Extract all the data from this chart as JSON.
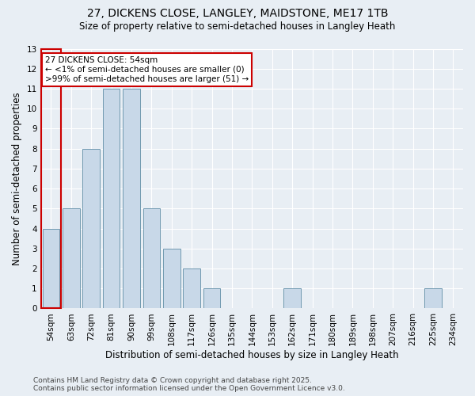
{
  "title": "27, DICKENS CLOSE, LANGLEY, MAIDSTONE, ME17 1TB",
  "subtitle": "Size of property relative to semi-detached houses in Langley Heath",
  "xlabel": "Distribution of semi-detached houses by size in Langley Heath",
  "ylabel": "Number of semi-detached properties",
  "categories": [
    "54sqm",
    "63sqm",
    "72sqm",
    "81sqm",
    "90sqm",
    "99sqm",
    "108sqm",
    "117sqm",
    "126sqm",
    "135sqm",
    "144sqm",
    "153sqm",
    "162sqm",
    "171sqm",
    "180sqm",
    "189sqm",
    "198sqm",
    "207sqm",
    "216sqm",
    "225sqm",
    "234sqm"
  ],
  "values": [
    4,
    5,
    8,
    11,
    11,
    5,
    3,
    2,
    1,
    0,
    0,
    0,
    1,
    0,
    0,
    0,
    0,
    0,
    0,
    1,
    0
  ],
  "bar_color": "#c8d8e8",
  "bar_edge_color": "#7099b0",
  "annotation_title": "27 DICKENS CLOSE: 54sqm",
  "annotation_line1": "← <1% of semi-detached houses are smaller (0)",
  "annotation_line2": ">99% of semi-detached houses are larger (51) →",
  "annotation_box_facecolor": "#ffffff",
  "annotation_box_edgecolor": "#cc0000",
  "red_rect_edgecolor": "#cc0000",
  "ylim": [
    0,
    13
  ],
  "yticks": [
    0,
    1,
    2,
    3,
    4,
    5,
    6,
    7,
    8,
    9,
    10,
    11,
    12,
    13
  ],
  "background_color": "#e8eef4",
  "grid_color": "#ffffff",
  "footer_line1": "Contains HM Land Registry data © Crown copyright and database right 2025.",
  "footer_line2": "Contains public sector information licensed under the Open Government Licence v3.0.",
  "title_fontsize": 10,
  "subtitle_fontsize": 8.5,
  "xlabel_fontsize": 8.5,
  "ylabel_fontsize": 8.5,
  "tick_fontsize": 7.5,
  "annotation_fontsize": 7.5,
  "footer_fontsize": 6.5
}
